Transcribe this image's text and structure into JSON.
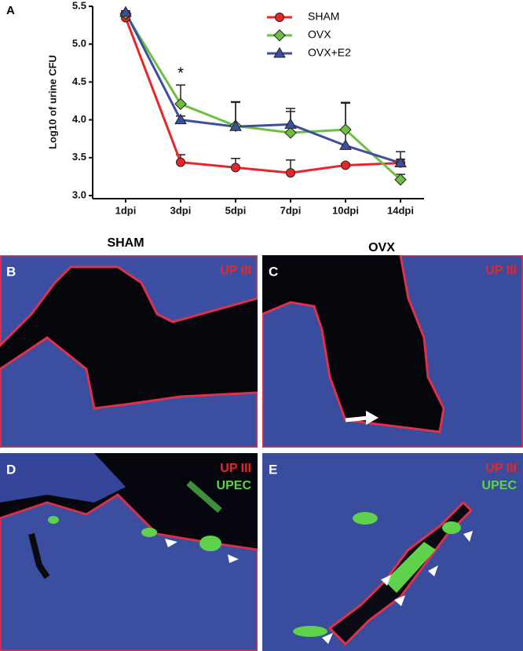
{
  "chart_data": {
    "type": "line",
    "panel_label": "A",
    "ylabel": "Log10 of urine CFU",
    "categories": [
      "1dpi",
      "3dpi",
      "5dpi",
      "7dpi",
      "10dpi",
      "14dpi"
    ],
    "ylim": [
      3.0,
      5.5
    ],
    "yticks": [
      {
        "value": 3.0,
        "label": "3.0"
      },
      3.5,
      {
        "value": 4.0,
        "label": "4.0"
      },
      4.5,
      {
        "value": 5.0,
        "label": "5.0"
      },
      5.5
    ],
    "annotations": [
      "*"
    ],
    "legend": "upper right",
    "series": [
      {
        "name": "SHAM",
        "color": "#e8262a",
        "marker": "circle",
        "values": [
          5.35,
          3.44,
          3.37,
          3.3,
          3.4,
          3.43
        ],
        "errors": [
          0.02,
          0.1,
          0.12,
          0.17,
          0.02,
          0.05
        ]
      },
      {
        "name": "OVX",
        "color": "#6dbf3f",
        "marker": "diamond",
        "values": [
          5.4,
          4.21,
          3.92,
          3.83,
          3.87,
          3.21
        ],
        "errors": [
          0.02,
          0.25,
          0.32,
          0.32,
          0.35,
          0.07
        ]
      },
      {
        "name": "OVX+E2",
        "color": "#3b4fa0",
        "marker": "triangle",
        "values": [
          5.42,
          4.0,
          3.91,
          3.94,
          3.66,
          3.43
        ],
        "errors": [
          0.02,
          0.05,
          0.32,
          0.17,
          0.57,
          0.15
        ]
      }
    ]
  },
  "images": {
    "column_titles": [
      "SHAM",
      "OVX"
    ],
    "panels": [
      {
        "label": "B",
        "stains": [
          "UP III"
        ]
      },
      {
        "label": "C",
        "stains": [
          "UP III"
        ]
      },
      {
        "label": "D",
        "stains": [
          "UP III",
          "UPEC"
        ]
      },
      {
        "label": "E",
        "stains": [
          "UP III",
          "UPEC"
        ]
      }
    ]
  }
}
